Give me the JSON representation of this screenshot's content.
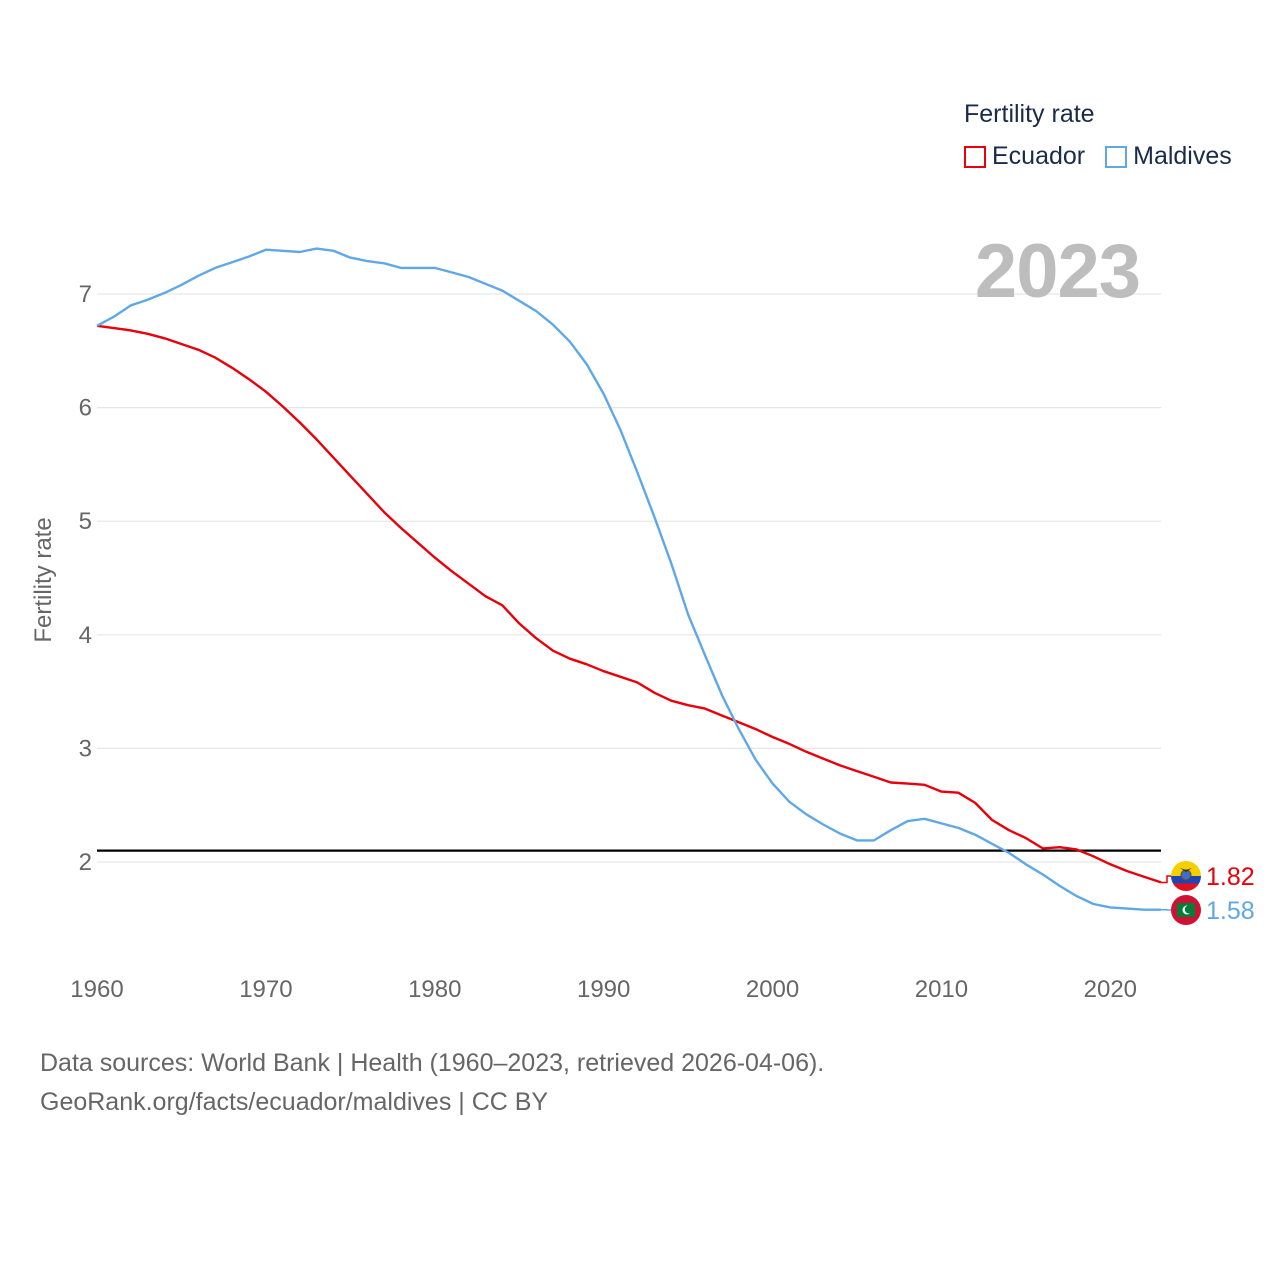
{
  "legend": {
    "title": "Fertility rate",
    "items": [
      {
        "label": "Ecuador",
        "color": "#e8000b"
      },
      {
        "label": "Maldives",
        "color": "#5fa8e8"
      }
    ]
  },
  "year_label": "2023",
  "source": {
    "line1": "Data sources: World Bank | Health (1960–2023, retrieved 2026-04-06).",
    "line2": "GeoRank.org/facts/ecuador/maldives | CC BY"
  },
  "chart_data": {
    "type": "line",
    "title": "Fertility rate",
    "xlabel": "",
    "ylabel": "Fertility rate",
    "xlim": [
      1960,
      2023
    ],
    "ylim": [
      1.3,
      7.4
    ],
    "xticks": [
      1960,
      1970,
      1980,
      1990,
      2000,
      2010,
      2020
    ],
    "yticks": [
      2,
      3,
      4,
      5,
      6,
      7
    ],
    "reference_line": 2.1,
    "x": [
      1960,
      1961,
      1962,
      1963,
      1964,
      1965,
      1966,
      1967,
      1968,
      1969,
      1970,
      1971,
      1972,
      1973,
      1974,
      1975,
      1976,
      1977,
      1978,
      1979,
      1980,
      1981,
      1982,
      1983,
      1984,
      1985,
      1986,
      1987,
      1988,
      1989,
      1990,
      1991,
      1992,
      1993,
      1994,
      1995,
      1996,
      1997,
      1998,
      1999,
      2000,
      2001,
      2002,
      2003,
      2004,
      2005,
      2006,
      2007,
      2008,
      2009,
      2010,
      2011,
      2012,
      2013,
      2014,
      2015,
      2016,
      2017,
      2018,
      2019,
      2020,
      2021,
      2022,
      2023
    ],
    "series": [
      {
        "name": "Ecuador",
        "color": "#e8000b",
        "end_value": "1.82",
        "values": [
          6.72,
          6.7,
          6.68,
          6.65,
          6.61,
          6.56,
          6.51,
          6.44,
          6.35,
          6.25,
          6.14,
          6.01,
          5.87,
          5.72,
          5.56,
          5.4,
          5.24,
          5.08,
          4.94,
          4.81,
          4.68,
          4.56,
          4.45,
          4.34,
          4.26,
          4.1,
          3.97,
          3.86,
          3.79,
          3.74,
          3.68,
          3.63,
          3.58,
          3.49,
          3.42,
          3.38,
          3.35,
          3.29,
          3.23,
          3.17,
          3.1,
          3.04,
          2.97,
          2.91,
          2.85,
          2.8,
          2.75,
          2.7,
          2.69,
          2.68,
          2.62,
          2.61,
          2.52,
          2.37,
          2.28,
          2.21,
          2.12,
          2.13,
          2.11,
          2.05,
          1.98,
          1.92,
          1.87,
          1.82
        ]
      },
      {
        "name": "Maldives",
        "color": "#5fa8e8",
        "end_value": "1.58",
        "values": [
          6.72,
          6.8,
          6.9,
          6.95,
          7.01,
          7.08,
          7.16,
          7.23,
          7.28,
          7.33,
          7.39,
          7.38,
          7.37,
          7.4,
          7.38,
          7.32,
          7.29,
          7.27,
          7.23,
          7.23,
          7.23,
          7.19,
          7.15,
          7.09,
          7.03,
          6.94,
          6.85,
          6.73,
          6.58,
          6.38,
          6.12,
          5.8,
          5.43,
          5.04,
          4.63,
          4.18,
          3.82,
          3.47,
          3.17,
          2.9,
          2.69,
          2.53,
          2.42,
          2.33,
          2.25,
          2.19,
          2.19,
          2.28,
          2.36,
          2.38,
          2.34,
          2.3,
          2.24,
          2.16,
          2.08,
          1.98,
          1.89,
          1.79,
          1.7,
          1.63,
          1.6,
          1.59,
          1.58,
          1.58
        ]
      }
    ]
  }
}
